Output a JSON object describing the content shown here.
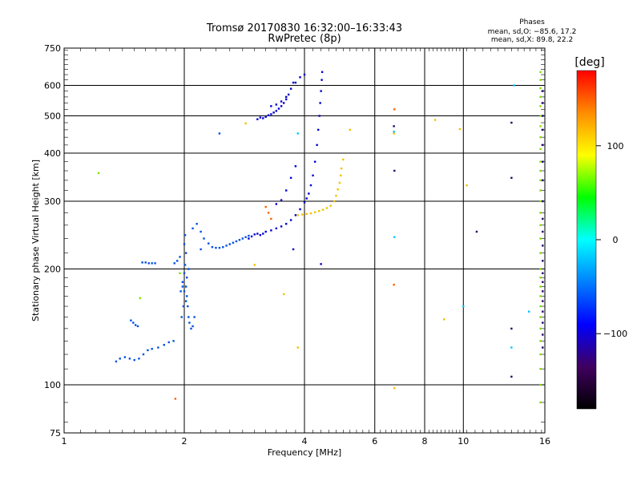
{
  "chart_data": {
    "type": "scatter",
    "title": "Tromsø 20170830 16:32:00–16:33:43",
    "subtitle": "RwPretec (8p)",
    "xlabel": "Frequency [MHz]",
    "ylabel": "Stationary phase Virtual Height [km]",
    "x_scale": "log",
    "y_scale": "log",
    "xlim": [
      1,
      16
    ],
    "ylim": [
      75,
      750
    ],
    "x_ticks": [
      1,
      2,
      4,
      6,
      8,
      10,
      16
    ],
    "x_tick_labels": [
      "1",
      "2",
      "4",
      "6",
      "8",
      "10",
      "16"
    ],
    "y_ticks": [
      75,
      100,
      200,
      300,
      400,
      500,
      600,
      750
    ],
    "y_tick_labels": [
      "75",
      "100",
      "200",
      "300",
      "400",
      "500",
      "600",
      "750"
    ],
    "grid": "on",
    "legend_block": {
      "title": "Phases",
      "line_o": "mean, sd,O: −85.6, 17.2",
      "line_x": "mean, sd,X:  89.8, 22.2"
    },
    "colorbar": {
      "label": "[deg]",
      "range": [
        -180,
        180
      ],
      "ticks": [
        100,
        0,
        -100
      ],
      "tick_labels": [
        "100",
        "0",
        "−100"
      ],
      "colors": [
        "#ff0000",
        "#ff8c00",
        "#ffff00",
        "#00ff00",
        "#00ffff",
        "#0080ff",
        "#0000ff",
        "#400060",
        "#000000"
      ]
    },
    "series": [
      {
        "color": "#0050e0",
        "points": [
          [
            1.35,
            115
          ],
          [
            1.38,
            117
          ],
          [
            1.42,
            118
          ],
          [
            1.46,
            117
          ],
          [
            1.5,
            116
          ],
          [
            1.54,
            117
          ],
          [
            1.58,
            120
          ],
          [
            1.62,
            123
          ],
          [
            1.66,
            124
          ],
          [
            1.72,
            125
          ],
          [
            1.78,
            127
          ],
          [
            1.83,
            129
          ],
          [
            1.88,
            130
          ],
          [
            1.57,
            208
          ],
          [
            1.6,
            208
          ],
          [
            1.63,
            207
          ],
          [
            1.66,
            207
          ],
          [
            1.69,
            207
          ],
          [
            1.47,
            147
          ],
          [
            1.49,
            145
          ],
          [
            1.51,
            143
          ],
          [
            1.53,
            142
          ],
          [
            1.89,
            207
          ],
          [
            1.92,
            210
          ],
          [
            1.95,
            215
          ],
          [
            1.96,
            175
          ],
          [
            1.98,
            185
          ],
          [
            2.0,
            195
          ],
          [
            2.01,
            205
          ],
          [
            2.02,
            180
          ],
          [
            2.03,
            170
          ],
          [
            2.04,
            160
          ],
          [
            2.05,
            150
          ],
          [
            1.99,
            160
          ],
          [
            1.97,
            150
          ],
          [
            2.06,
            145
          ],
          [
            2.08,
            140
          ],
          [
            2.1,
            142
          ],
          [
            2.12,
            150
          ],
          [
            2.05,
            200
          ],
          [
            2.03,
            190
          ],
          [
            2.02,
            165
          ],
          [
            2.0,
            175
          ],
          [
            1.98,
            180
          ],
          [
            2.02,
            220
          ],
          [
            2.0,
            232
          ],
          [
            2.01,
            245
          ],
          [
            2.1,
            255
          ],
          [
            2.15,
            262
          ],
          [
            2.2,
            250
          ],
          [
            2.24,
            240
          ],
          [
            2.2,
            225
          ],
          [
            2.3,
            233
          ],
          [
            2.35,
            228
          ],
          [
            2.4,
            227
          ],
          [
            2.45,
            227
          ],
          [
            2.5,
            228
          ],
          [
            2.55,
            230
          ],
          [
            2.6,
            232
          ],
          [
            2.65,
            234
          ],
          [
            2.7,
            236
          ],
          [
            2.75,
            238
          ],
          [
            2.8,
            240
          ],
          [
            2.85,
            242
          ],
          [
            2.9,
            244
          ],
          [
            2.45,
            450
          ]
        ]
      },
      {
        "color": "#0000d0",
        "points": [
          [
            2.9,
            240
          ],
          [
            2.95,
            243
          ],
          [
            3.0,
            246
          ],
          [
            3.05,
            247
          ],
          [
            3.1,
            245
          ],
          [
            3.15,
            247
          ],
          [
            3.2,
            250
          ],
          [
            3.3,
            252
          ],
          [
            3.4,
            255
          ],
          [
            3.5,
            258
          ],
          [
            3.6,
            262
          ],
          [
            3.7,
            268
          ],
          [
            3.8,
            276
          ],
          [
            3.9,
            286
          ],
          [
            4.0,
            298
          ],
          [
            4.05,
            305
          ],
          [
            4.1,
            314
          ],
          [
            4.15,
            330
          ],
          [
            4.2,
            350
          ],
          [
            4.25,
            380
          ],
          [
            4.3,
            420
          ],
          [
            4.33,
            460
          ],
          [
            4.36,
            500
          ],
          [
            4.38,
            540
          ],
          [
            4.4,
            580
          ],
          [
            4.42,
            620
          ],
          [
            4.43,
            650
          ],
          [
            3.05,
            490
          ],
          [
            3.1,
            495
          ],
          [
            3.15,
            493
          ],
          [
            3.2,
            497
          ],
          [
            3.25,
            502
          ],
          [
            3.3,
            505
          ],
          [
            3.35,
            510
          ],
          [
            3.4,
            515
          ],
          [
            3.45,
            522
          ],
          [
            3.5,
            530
          ],
          [
            3.55,
            540
          ],
          [
            3.6,
            552
          ],
          [
            3.65,
            568
          ],
          [
            3.7,
            588
          ],
          [
            3.75,
            610
          ],
          [
            3.3,
            530
          ],
          [
            3.4,
            535
          ],
          [
            3.5,
            545
          ],
          [
            3.6,
            560
          ],
          [
            3.4,
            295
          ],
          [
            3.5,
            302
          ],
          [
            3.6,
            320
          ],
          [
            3.7,
            345
          ],
          [
            3.8,
            370
          ],
          [
            3.9,
            630
          ],
          [
            4.0,
            640
          ],
          [
            3.8,
            610
          ],
          [
            4.4,
            206
          ],
          [
            3.75,
            225
          ]
        ]
      },
      {
        "color": "#f0c000",
        "points": [
          [
            3.85,
            276
          ],
          [
            3.95,
            277
          ],
          [
            4.05,
            278
          ],
          [
            4.15,
            279
          ],
          [
            4.25,
            281
          ],
          [
            4.35,
            283
          ],
          [
            4.45,
            285
          ],
          [
            4.55,
            288
          ],
          [
            4.65,
            292
          ],
          [
            4.75,
            300
          ],
          [
            4.8,
            310
          ],
          [
            4.85,
            322
          ],
          [
            4.9,
            335
          ],
          [
            4.93,
            350
          ],
          [
            4.95,
            365
          ],
          [
            5.0,
            385
          ],
          [
            5.2,
            460
          ],
          [
            2.85,
            478
          ],
          [
            3.85,
            125
          ],
          [
            3.55,
            172
          ],
          [
            3.0,
            205
          ],
          [
            8.95,
            148
          ],
          [
            9.8,
            462
          ],
          [
            10.2,
            330
          ],
          [
            8.5,
            488
          ],
          [
            6.7,
            450
          ],
          [
            6.72,
            98
          ]
        ]
      },
      {
        "color": "#ff6000",
        "points": [
          [
            3.2,
            290
          ],
          [
            3.25,
            280
          ],
          [
            3.3,
            270
          ],
          [
            1.9,
            92
          ],
          [
            6.7,
            182
          ],
          [
            6.72,
            520
          ]
        ]
      },
      {
        "color": "#00c8ff",
        "points": [
          [
            6.72,
            242
          ],
          [
            6.7,
            455
          ],
          [
            10.0,
            160
          ],
          [
            13.2,
            125
          ],
          [
            13.4,
            600
          ],
          [
            14.6,
            155
          ],
          [
            3.85,
            450
          ]
        ]
      },
      {
        "color": "#80e000",
        "points": [
          [
            1.22,
            355
          ],
          [
            1.55,
            168
          ],
          [
            15.6,
            650
          ],
          [
            15.6,
            620
          ],
          [
            15.6,
            590
          ],
          [
            15.6,
            560
          ],
          [
            15.6,
            530
          ],
          [
            15.6,
            500
          ],
          [
            15.6,
            470
          ],
          [
            15.6,
            440
          ],
          [
            15.6,
            410
          ],
          [
            15.6,
            380
          ],
          [
            15.6,
            360
          ],
          [
            15.6,
            340
          ],
          [
            15.6,
            320
          ],
          [
            15.6,
            300
          ],
          [
            15.6,
            280
          ],
          [
            15.6,
            260
          ],
          [
            15.6,
            240
          ],
          [
            15.6,
            220
          ],
          [
            15.6,
            200
          ],
          [
            15.6,
            190
          ],
          [
            15.6,
            180
          ],
          [
            15.6,
            170
          ],
          [
            15.6,
            160
          ],
          [
            15.6,
            150
          ],
          [
            15.6,
            140
          ],
          [
            15.6,
            130
          ],
          [
            15.6,
            120
          ],
          [
            15.6,
            110
          ],
          [
            15.6,
            100
          ],
          [
            15.6,
            90
          ],
          [
            1.95,
            195
          ]
        ]
      },
      {
        "color": "#200070",
        "points": [
          [
            6.72,
            360
          ],
          [
            6.7,
            470
          ],
          [
            13.2,
            140
          ],
          [
            13.2,
            105
          ],
          [
            13.2,
            480
          ],
          [
            13.2,
            345
          ],
          [
            10.8,
            250
          ],
          [
            15.8,
            580
          ],
          [
            15.8,
            540
          ],
          [
            15.8,
            500
          ],
          [
            15.8,
            460
          ],
          [
            15.8,
            420
          ],
          [
            15.8,
            380
          ],
          [
            15.8,
            340
          ],
          [
            15.8,
            300
          ],
          [
            15.8,
            270
          ],
          [
            15.8,
            250
          ],
          [
            15.8,
            230
          ],
          [
            15.8,
            210
          ],
          [
            15.8,
            195
          ],
          [
            15.8,
            185
          ],
          [
            15.8,
            175
          ],
          [
            15.8,
            165
          ],
          [
            15.8,
            155
          ],
          [
            15.8,
            145
          ],
          [
            15.8,
            135
          ],
          [
            15.8,
            125
          ]
        ]
      }
    ]
  }
}
